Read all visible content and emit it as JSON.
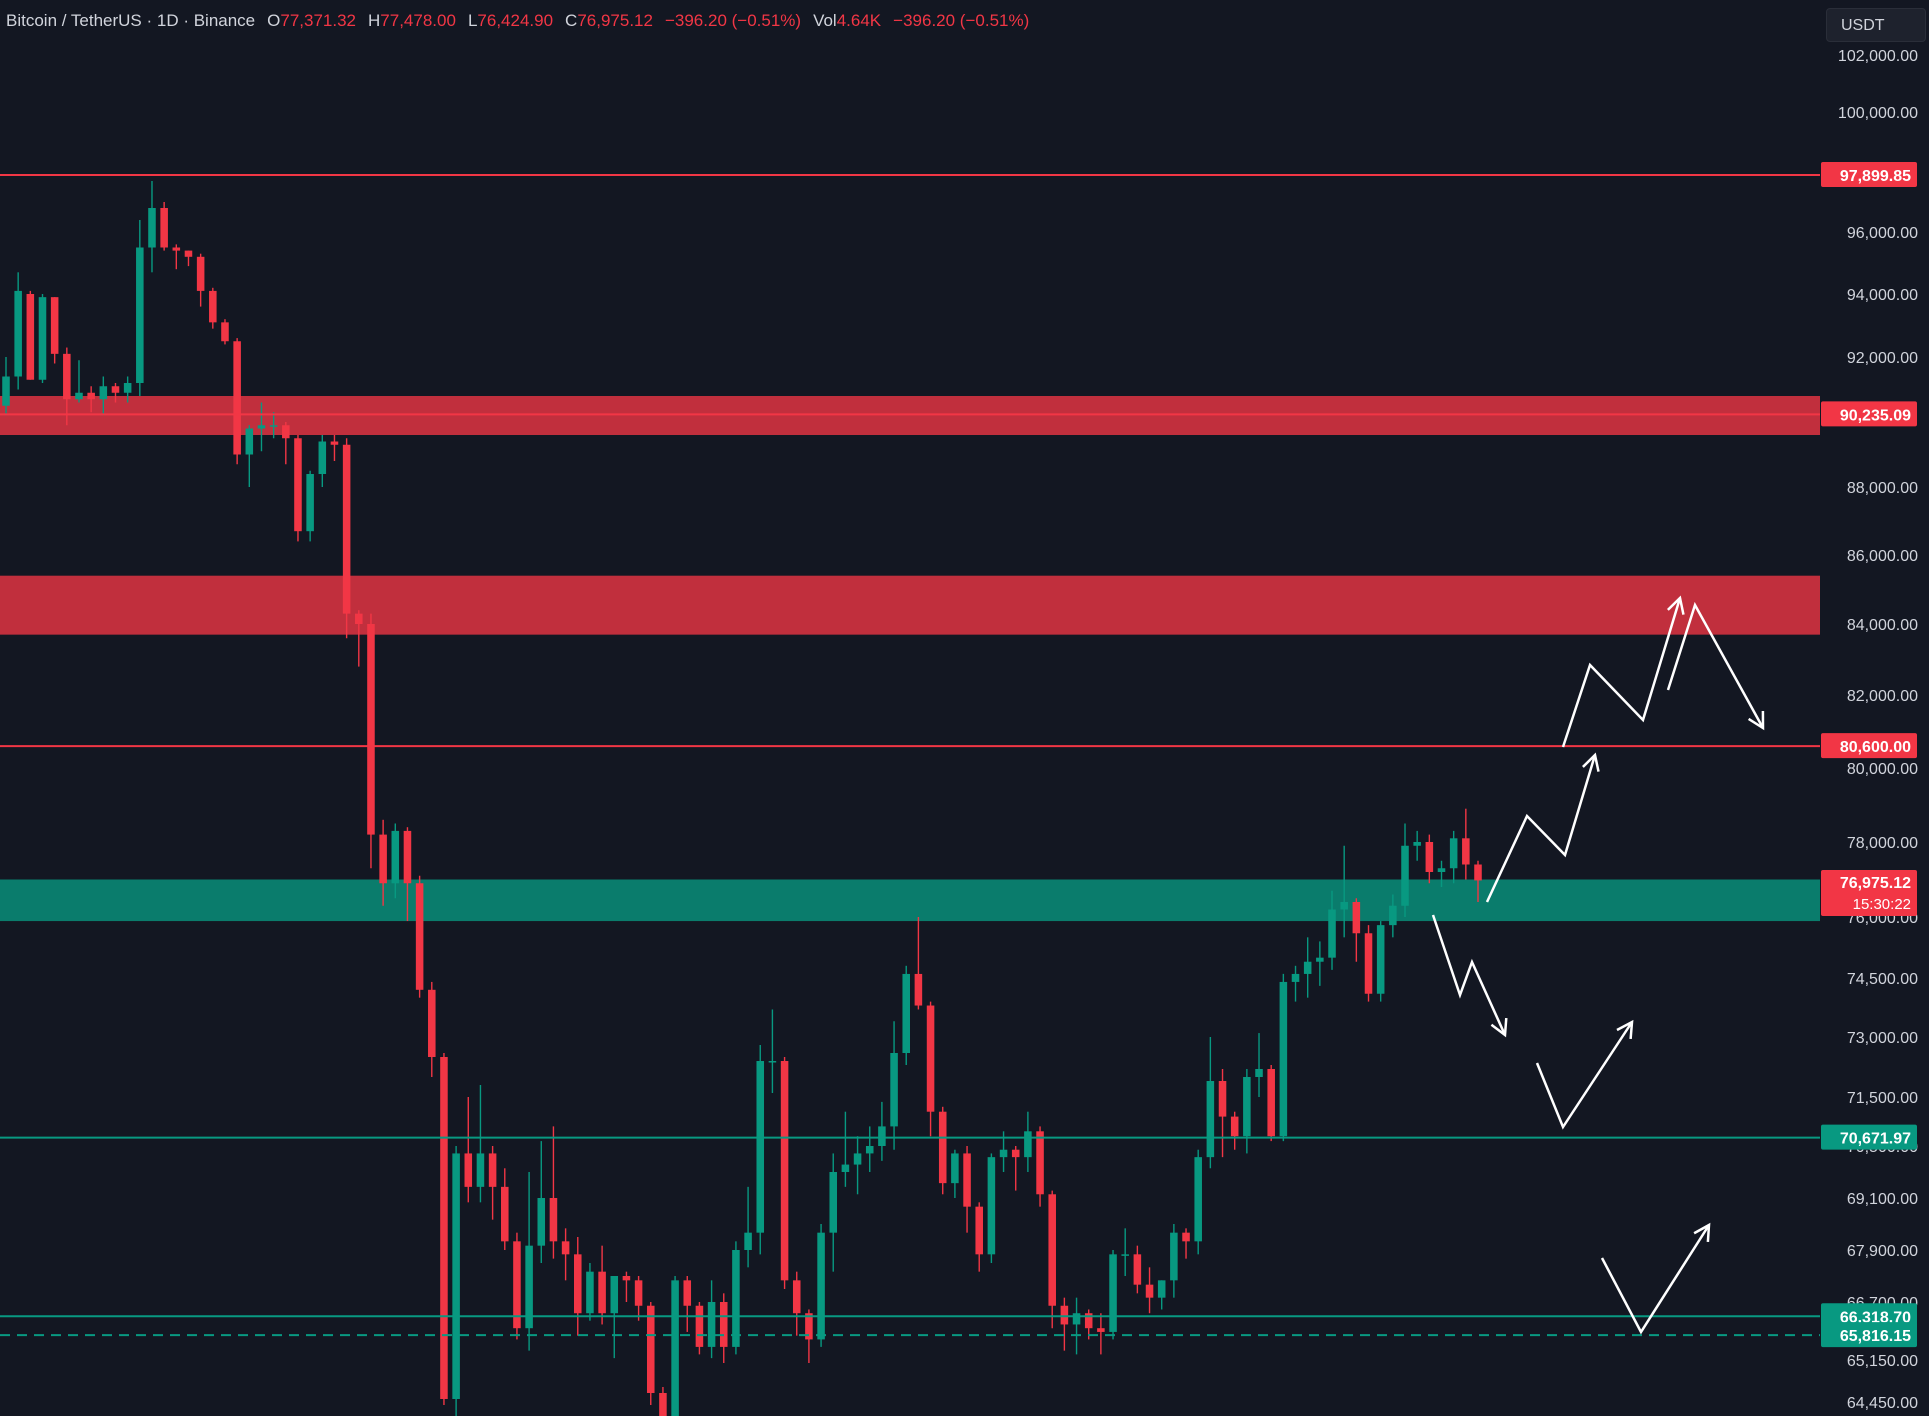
{
  "header": {
    "symbol": "Bitcoin / TetherUS · 1D · Binance",
    "open_label": "O",
    "open": "77,371.32",
    "high_label": "H",
    "high": "77,478.00",
    "low_label": "L",
    "low": "76,424.90",
    "close_label": "C",
    "close": "76,975.12",
    "change": "−396.20 (−0.51%)",
    "vol_label": "Vol",
    "vol": "4.64K",
    "vol_change": "−396.20 (−0.51%)"
  },
  "currency_button": "USDT",
  "colors": {
    "background": "#131722",
    "up": "#089981",
    "down": "#f23645",
    "resistance": "#f23645",
    "support": "#089981",
    "axis_text": "#d1d4dc",
    "arrows": "#ffffff"
  },
  "chart_data": {
    "type": "candlestick",
    "symbol": "Bitcoin / TetherUS",
    "interval": "1D",
    "exchange": "Binance",
    "price_axis": {
      "ticks": [
        "102,000.00",
        "100,000.00",
        "96,000.00",
        "94,000.00",
        "92,000.00",
        "88,000.00",
        "86,000.00",
        "84,000.00",
        "82,000.00",
        "80,000.00",
        "78,000.00",
        "76,000.00",
        "74,500.00",
        "73,000.00",
        "71,500.00",
        "70,500.00",
        "69,100.00",
        "67,900.00",
        "66,700.00",
        "65,150.00",
        "64,450.00"
      ],
      "tick_values": [
        102000,
        100000,
        96000,
        94000,
        92000,
        88000,
        86000,
        84000,
        82000,
        80000,
        78000,
        76000,
        74500,
        73000,
        71500,
        70500,
        69100,
        67900,
        66700,
        65150,
        64450
      ]
    },
    "horizontal_levels": [
      {
        "price": 97899.85,
        "label": "97,899.85",
        "color": "#f23645",
        "style": "solid"
      },
      {
        "price": 90235.09,
        "label": "90,235.09",
        "color": "#f23645",
        "style": "solid"
      },
      {
        "price": 80600.0,
        "label": "80,600.00",
        "color": "#f23645",
        "style": "solid"
      },
      {
        "price": 70671.97,
        "label": "70,671.97",
        "color": "#089981",
        "style": "solid"
      },
      {
        "price": 66318.7,
        "label": "66,318.70",
        "color": "#089981",
        "style": "solid"
      },
      {
        "price": 65816.15,
        "label": "65,816.15",
        "color": "#089981",
        "style": "dashed"
      }
    ],
    "zones": [
      {
        "from": 89600,
        "to": 90800,
        "color": "#f23645"
      },
      {
        "from": 83700,
        "to": 85400,
        "color": "#f23645"
      },
      {
        "from": 75900,
        "to": 77000,
        "color": "#089981"
      }
    ],
    "current_price": {
      "label": "76,975.12",
      "countdown": "15:30:22"
    },
    "candles": [
      [
        90500,
        92000,
        90200,
        91400
      ],
      [
        91400,
        94700,
        91000,
        94100
      ],
      [
        94000,
        94100,
        91300,
        91300
      ],
      [
        91300,
        94000,
        91200,
        93900
      ],
      [
        93900,
        93900,
        91800,
        92100
      ],
      [
        92100,
        92300,
        89900,
        90700
      ],
      [
        90700,
        91900,
        90600,
        90900
      ],
      [
        90900,
        91100,
        90300,
        90700
      ],
      [
        90700,
        91400,
        90200,
        91100
      ],
      [
        91100,
        91200,
        90600,
        90900
      ],
      [
        90900,
        91400,
        90600,
        91200
      ],
      [
        91200,
        96400,
        90800,
        95500
      ],
      [
        95500,
        97700,
        94700,
        96800
      ],
      [
        96800,
        97000,
        95400,
        95500
      ],
      [
        95500,
        95600,
        94800,
        95400
      ],
      [
        95400,
        95400,
        94900,
        95200
      ],
      [
        95200,
        95300,
        93600,
        94100
      ],
      [
        94100,
        94200,
        92900,
        93100
      ],
      [
        93100,
        93200,
        92400,
        92500
      ],
      [
        92500,
        92600,
        88700,
        89000
      ],
      [
        89000,
        89900,
        88000,
        89800
      ],
      [
        89800,
        90600,
        89100,
        89900
      ],
      [
        89900,
        90300,
        89500,
        89900
      ],
      [
        89900,
        90000,
        88700,
        89500
      ],
      [
        89500,
        89600,
        86400,
        86700
      ],
      [
        86700,
        88500,
        86400,
        88400
      ],
      [
        88400,
        89600,
        88000,
        89400
      ],
      [
        89400,
        89600,
        88800,
        89300
      ],
      [
        89300,
        89500,
        83600,
        84300
      ],
      [
        84300,
        84400,
        82800,
        84000
      ],
      [
        84000,
        84300,
        77300,
        78200
      ],
      [
        78200,
        78600,
        76300,
        76900
      ],
      [
        76900,
        78500,
        76500,
        78300
      ],
      [
        78300,
        78400,
        75900,
        76900
      ],
      [
        76900,
        77100,
        74000,
        74200
      ],
      [
        74200,
        74400,
        72000,
        72500
      ],
      [
        72500,
        72600,
        64400,
        64500
      ],
      [
        64500,
        70500,
        64200,
        70300
      ],
      [
        70300,
        71500,
        69000,
        69400
      ],
      [
        69400,
        71800,
        69000,
        70300
      ],
      [
        70300,
        70500,
        68600,
        69400
      ],
      [
        69400,
        69900,
        67900,
        68100
      ],
      [
        68100,
        68300,
        65700,
        66000
      ],
      [
        66000,
        69800,
        65400,
        68000
      ],
      [
        68000,
        70600,
        67600,
        69100
      ],
      [
        69100,
        70900,
        67700,
        68100
      ],
      [
        68100,
        68400,
        67200,
        67800
      ],
      [
        67800,
        68200,
        65800,
        66400
      ],
      [
        66400,
        67600,
        66200,
        67400
      ],
      [
        67400,
        68000,
        66100,
        66400
      ],
      [
        66400,
        67200,
        65200,
        67300
      ],
      [
        67300,
        67400,
        66700,
        67200
      ],
      [
        67200,
        67300,
        66200,
        66600
      ],
      [
        66600,
        66700,
        64400,
        64600
      ],
      [
        64600,
        64700,
        63200,
        64100
      ],
      [
        64100,
        67300,
        63900,
        67200
      ],
      [
        67200,
        67300,
        65900,
        66600
      ],
      [
        66600,
        66700,
        65300,
        65500
      ],
      [
        65500,
        67200,
        65200,
        66700
      ],
      [
        66700,
        66900,
        65100,
        65500
      ],
      [
        65500,
        68100,
        65300,
        67900
      ],
      [
        67900,
        69400,
        67500,
        68300
      ],
      [
        68300,
        72800,
        67800,
        72400
      ],
      [
        72400,
        73700,
        71600,
        72400
      ],
      [
        72400,
        72500,
        67000,
        67200
      ],
      [
        67200,
        67400,
        65800,
        66400
      ],
      [
        66400,
        66500,
        65100,
        65700
      ],
      [
        65700,
        68500,
        65500,
        68300
      ],
      [
        68300,
        70300,
        67400,
        69800
      ],
      [
        69800,
        71200,
        69400,
        70000
      ],
      [
        70000,
        70700,
        69200,
        70300
      ],
      [
        70300,
        70900,
        69800,
        70500
      ],
      [
        70500,
        71400,
        70100,
        70900
      ],
      [
        70900,
        73400,
        70400,
        72600
      ],
      [
        72600,
        74800,
        72300,
        74600
      ],
      [
        74600,
        76000,
        73700,
        73800
      ],
      [
        73800,
        73900,
        70700,
        71200
      ],
      [
        71200,
        71300,
        69200,
        69500
      ],
      [
        69500,
        70400,
        69100,
        70300
      ],
      [
        70300,
        70500,
        68300,
        68900
      ],
      [
        68900,
        69000,
        67400,
        67800
      ],
      [
        67800,
        70300,
        67600,
        70200
      ],
      [
        70200,
        70800,
        69800,
        70400
      ],
      [
        70400,
        70500,
        69300,
        70200
      ],
      [
        70200,
        71200,
        69800,
        70800
      ],
      [
        70800,
        70900,
        68900,
        69200
      ],
      [
        69200,
        69300,
        66000,
        66600
      ],
      [
        66600,
        66800,
        65400,
        66100
      ],
      [
        66100,
        66800,
        65300,
        66400
      ],
      [
        66400,
        66500,
        65700,
        66000
      ],
      [
        66000,
        66400,
        65300,
        65900
      ],
      [
        65900,
        67900,
        65700,
        67800
      ],
      [
        67800,
        68400,
        67300,
        67800
      ],
      [
        67800,
        68000,
        66900,
        67100
      ],
      [
        67100,
        67500,
        66400,
        66800
      ],
      [
        66800,
        67200,
        66500,
        67200
      ],
      [
        67200,
        68500,
        66800,
        68300
      ],
      [
        68300,
        68400,
        67700,
        68100
      ],
      [
        68100,
        70400,
        67800,
        70200
      ],
      [
        70200,
        73000,
        69900,
        71900
      ],
      [
        71900,
        72200,
        70200,
        71100
      ],
      [
        71100,
        71200,
        70400,
        70700
      ],
      [
        70700,
        72200,
        70300,
        72000
      ],
      [
        72000,
        73100,
        71500,
        72200
      ],
      [
        72200,
        72300,
        70600,
        70700
      ],
      [
        70700,
        74600,
        70600,
        74400
      ],
      [
        74400,
        74800,
        73900,
        74600
      ],
      [
        74600,
        75500,
        74000,
        74900
      ],
      [
        74900,
        75400,
        74300,
        75000
      ],
      [
        75000,
        76700,
        74700,
        76200
      ],
      [
        76200,
        77900,
        75500,
        76400
      ],
      [
        76400,
        76500,
        74900,
        75600
      ],
      [
        75600,
        75800,
        73900,
        74100
      ],
      [
        74100,
        75900,
        73900,
        75800
      ],
      [
        75800,
        76600,
        75500,
        76300
      ],
      [
        76300,
        78500,
        76000,
        77900
      ],
      [
        77900,
        78300,
        77500,
        78000
      ],
      [
        78000,
        78200,
        76900,
        77200
      ],
      [
        77200,
        77500,
        76800,
        77300
      ],
      [
        77300,
        78300,
        76900,
        78100
      ],
      [
        78100,
        78900,
        77000,
        77400
      ],
      [
        77400,
        77500,
        76400,
        76975
      ]
    ],
    "scenario_arrows": [
      "up-to-84000-then-down",
      "down-to-73000",
      "up-from-70500",
      "up-from-66000"
    ]
  }
}
